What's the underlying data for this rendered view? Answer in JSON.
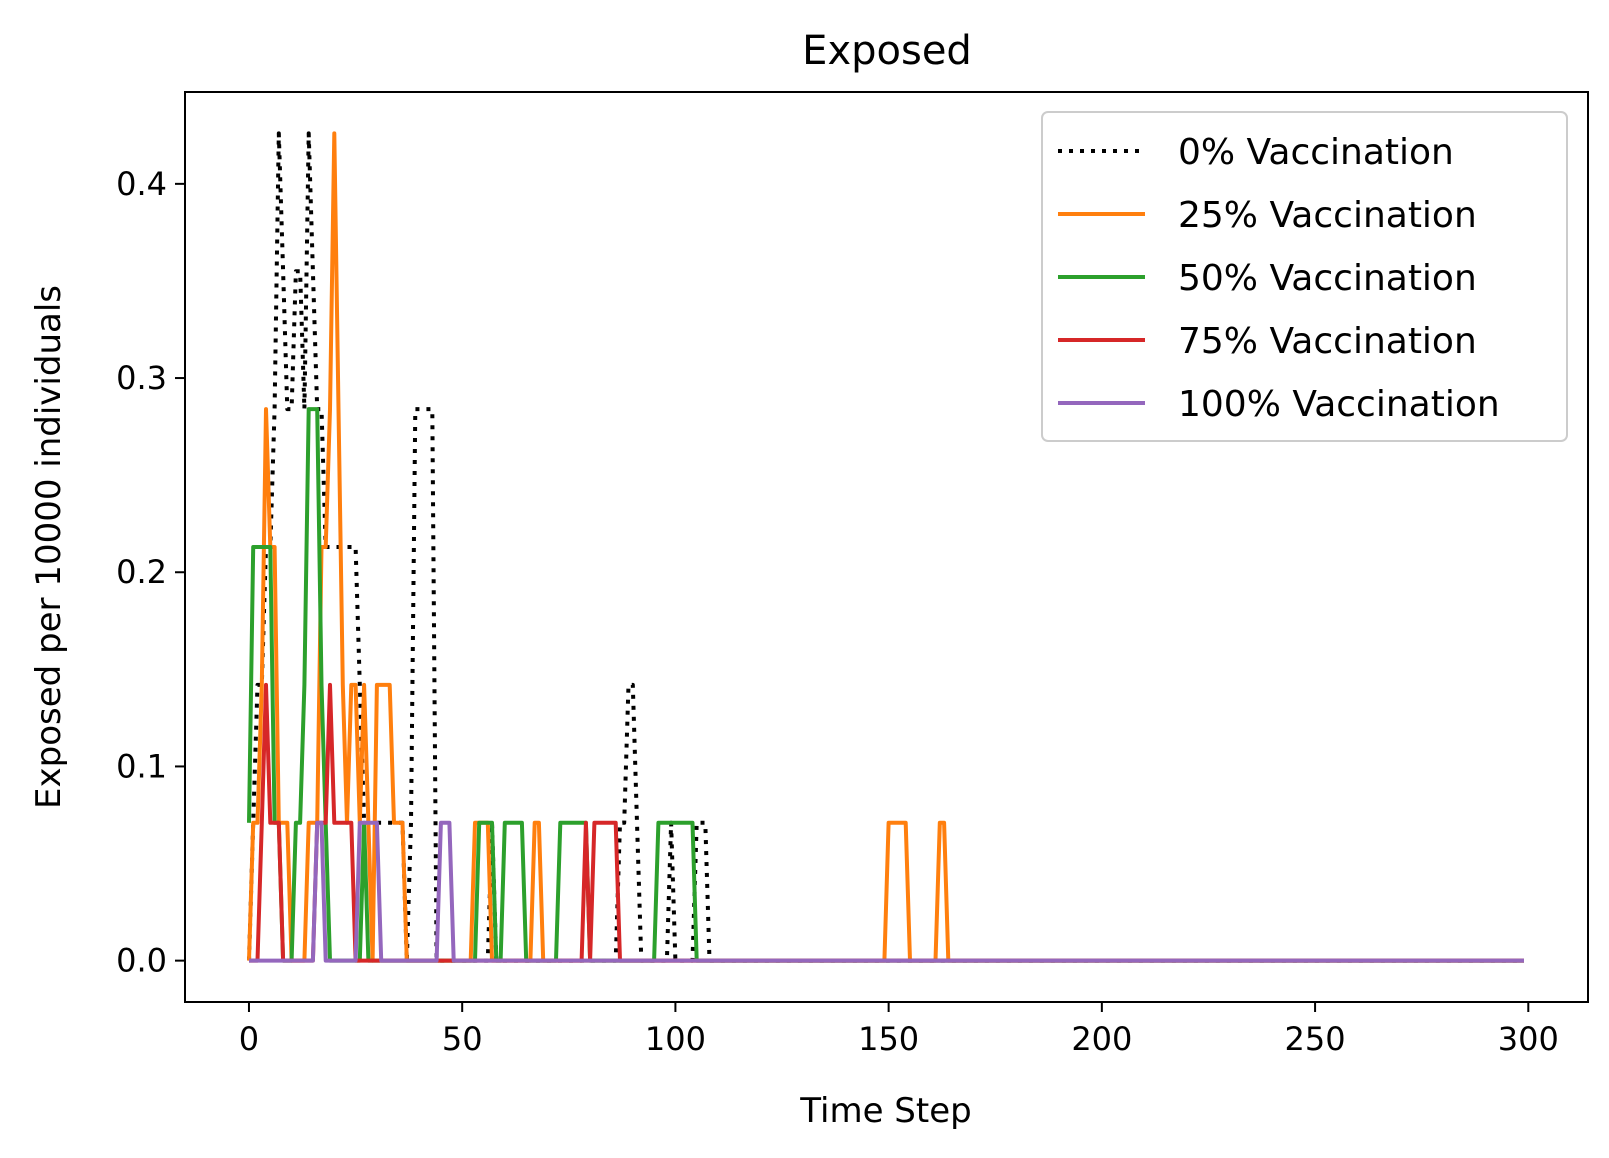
{
  "chart_data": {
    "type": "line",
    "title": "Exposed",
    "xlabel": "Time Step",
    "ylabel": "Exposed per 10000 individuals",
    "xlim": [
      -15,
      314
    ],
    "ylim": [
      -0.0213,
      0.4473
    ],
    "xticks": [
      0,
      50,
      100,
      150,
      200,
      250,
      300
    ],
    "xtick_labels": [
      "0",
      "50",
      "100",
      "150",
      "200",
      "250",
      "300"
    ],
    "yticks": [
      0.0,
      0.1,
      0.2,
      0.3,
      0.4
    ],
    "ytick_labels": [
      "0.0",
      "0.1",
      "0.2",
      "0.3",
      "0.4"
    ],
    "grid": false,
    "legend_position": "top-right",
    "series": [
      {
        "name": "0% Vaccination",
        "color": "#000000",
        "style": "dotted",
        "points": [
          [
            0,
            0
          ],
          [
            1,
            0.071
          ],
          [
            2,
            0.142
          ],
          [
            3,
            0.142
          ],
          [
            4,
            0.213
          ],
          [
            5,
            0.213
          ],
          [
            6,
            0.284
          ],
          [
            7,
            0.426
          ],
          [
            8,
            0.355
          ],
          [
            9,
            0.284
          ],
          [
            10,
            0.284
          ],
          [
            11,
            0.355
          ],
          [
            12,
            0.355
          ],
          [
            13,
            0.284
          ],
          [
            14,
            0.426
          ],
          [
            15,
            0.355
          ],
          [
            16,
            0.284
          ],
          [
            17,
            0.284
          ],
          [
            18,
            0.213
          ],
          [
            19,
            0.213
          ],
          [
            20,
            0.213
          ],
          [
            21,
            0.213
          ],
          [
            22,
            0.213
          ],
          [
            23,
            0.213
          ],
          [
            24,
            0.213
          ],
          [
            25,
            0.213
          ],
          [
            26,
            0.142
          ],
          [
            27,
            0.071
          ],
          [
            28,
            0.071
          ],
          [
            29,
            0.071
          ],
          [
            30,
            0.071
          ],
          [
            31,
            0.071
          ],
          [
            32,
            0.071
          ],
          [
            33,
            0.071
          ],
          [
            34,
            0.071
          ],
          [
            35,
            0.071
          ],
          [
            36,
            0.071
          ],
          [
            37,
            0
          ],
          [
            38,
            0.071
          ],
          [
            39,
            0.284
          ],
          [
            40,
            0.284
          ],
          [
            41,
            0.284
          ],
          [
            42,
            0.284
          ],
          [
            43,
            0.284
          ],
          [
            44,
            0
          ],
          [
            45,
            0
          ],
          [
            46,
            0
          ],
          [
            47,
            0
          ],
          [
            48,
            0
          ],
          [
            49,
            0
          ],
          [
            50,
            0
          ],
          [
            51,
            0
          ],
          [
            52,
            0
          ],
          [
            53,
            0
          ],
          [
            54,
            0
          ],
          [
            55,
            0
          ],
          [
            56,
            0
          ],
          [
            57,
            0.071
          ],
          [
            58,
            0
          ],
          [
            59,
            0
          ],
          [
            60,
            0
          ],
          [
            61,
            0
          ],
          [
            62,
            0
          ],
          [
            63,
            0
          ],
          [
            64,
            0
          ],
          [
            65,
            0
          ],
          [
            66,
            0
          ],
          [
            67,
            0
          ],
          [
            68,
            0
          ],
          [
            69,
            0
          ],
          [
            70,
            0
          ],
          [
            71,
            0
          ],
          [
            72,
            0
          ],
          [
            73,
            0
          ],
          [
            74,
            0
          ],
          [
            75,
            0
          ],
          [
            76,
            0
          ],
          [
            77,
            0
          ],
          [
            78,
            0
          ],
          [
            79,
            0
          ],
          [
            80,
            0
          ],
          [
            81,
            0
          ],
          [
            82,
            0
          ],
          [
            83,
            0
          ],
          [
            84,
            0
          ],
          [
            85,
            0
          ],
          [
            86,
            0
          ],
          [
            87,
            0.071
          ],
          [
            88,
            0.071
          ],
          [
            89,
            0.142
          ],
          [
            90,
            0.142
          ],
          [
            91,
            0.071
          ],
          [
            92,
            0
          ],
          [
            93,
            0
          ],
          [
            94,
            0
          ],
          [
            95,
            0
          ],
          [
            96,
            0
          ],
          [
            97,
            0
          ],
          [
            98,
            0
          ],
          [
            99,
            0.071
          ],
          [
            100,
            0
          ],
          [
            101,
            0
          ],
          [
            102,
            0
          ],
          [
            103,
            0
          ],
          [
            104,
            0
          ],
          [
            105,
            0.071
          ],
          [
            106,
            0.071
          ],
          [
            107,
            0.071
          ],
          [
            108,
            0
          ],
          [
            299,
            0
          ]
        ]
      },
      {
        "name": "25% Vaccination",
        "color": "#ff7f0e",
        "style": "solid",
        "points": [
          [
            0,
            0
          ],
          [
            1,
            0.071
          ],
          [
            2,
            0.071
          ],
          [
            3,
            0.142
          ],
          [
            4,
            0.284
          ],
          [
            5,
            0.213
          ],
          [
            6,
            0.213
          ],
          [
            7,
            0.071
          ],
          [
            8,
            0.071
          ],
          [
            9,
            0.071
          ],
          [
            10,
            0
          ],
          [
            11,
            0
          ],
          [
            12,
            0
          ],
          [
            13,
            0
          ],
          [
            14,
            0.071
          ],
          [
            15,
            0.071
          ],
          [
            16,
            0.071
          ],
          [
            17,
            0.213
          ],
          [
            18,
            0.213
          ],
          [
            19,
            0.284
          ],
          [
            20,
            0.426
          ],
          [
            21,
            0.284
          ],
          [
            22,
            0.142
          ],
          [
            23,
            0.071
          ],
          [
            24,
            0.142
          ],
          [
            25,
            0.142
          ],
          [
            26,
            0.071
          ],
          [
            27,
            0.142
          ],
          [
            28,
            0.071
          ],
          [
            29,
            0
          ],
          [
            30,
            0.142
          ],
          [
            31,
            0.142
          ],
          [
            32,
            0.142
          ],
          [
            33,
            0.142
          ],
          [
            34,
            0.071
          ],
          [
            35,
            0.071
          ],
          [
            36,
            0.071
          ],
          [
            37,
            0
          ],
          [
            38,
            0
          ],
          [
            52,
            0
          ],
          [
            53,
            0.071
          ],
          [
            54,
            0.071
          ],
          [
            55,
            0.071
          ],
          [
            56,
            0.071
          ],
          [
            57,
            0
          ],
          [
            58,
            0
          ],
          [
            66,
            0
          ],
          [
            67,
            0.071
          ],
          [
            68,
            0.071
          ],
          [
            69,
            0
          ],
          [
            149,
            0
          ],
          [
            150,
            0.071
          ],
          [
            151,
            0.071
          ],
          [
            152,
            0.071
          ],
          [
            153,
            0.071
          ],
          [
            154,
            0.071
          ],
          [
            155,
            0
          ],
          [
            161,
            0
          ],
          [
            162,
            0.071
          ],
          [
            163,
            0.071
          ],
          [
            164,
            0
          ],
          [
            299,
            0
          ]
        ]
      },
      {
        "name": "50% Vaccination",
        "color": "#2ca02c",
        "style": "solid",
        "points": [
          [
            0,
            0.071
          ],
          [
            1,
            0.213
          ],
          [
            2,
            0.213
          ],
          [
            3,
            0.213
          ],
          [
            4,
            0.213
          ],
          [
            5,
            0.213
          ],
          [
            6,
            0.071
          ],
          [
            7,
            0.071
          ],
          [
            8,
            0
          ],
          [
            9,
            0
          ],
          [
            10,
            0
          ],
          [
            11,
            0.071
          ],
          [
            12,
            0.071
          ],
          [
            13,
            0.142
          ],
          [
            14,
            0.284
          ],
          [
            15,
            0.284
          ],
          [
            16,
            0.284
          ],
          [
            17,
            0.142
          ],
          [
            18,
            0.071
          ],
          [
            19,
            0
          ],
          [
            20,
            0
          ],
          [
            26,
            0
          ],
          [
            27,
            0.071
          ],
          [
            28,
            0
          ],
          [
            45,
            0
          ],
          [
            46,
            0
          ],
          [
            53,
            0
          ],
          [
            54,
            0.071
          ],
          [
            55,
            0.071
          ],
          [
            56,
            0.071
          ],
          [
            57,
            0.071
          ],
          [
            58,
            0
          ],
          [
            59,
            0
          ],
          [
            60,
            0.071
          ],
          [
            61,
            0.071
          ],
          [
            62,
            0.071
          ],
          [
            63,
            0.071
          ],
          [
            64,
            0.071
          ],
          [
            65,
            0
          ],
          [
            72,
            0
          ],
          [
            73,
            0.071
          ],
          [
            74,
            0.071
          ],
          [
            75,
            0.071
          ],
          [
            76,
            0.071
          ],
          [
            77,
            0.071
          ],
          [
            78,
            0.071
          ],
          [
            79,
            0.071
          ],
          [
            80,
            0
          ],
          [
            95,
            0
          ],
          [
            96,
            0.071
          ],
          [
            97,
            0.071
          ],
          [
            98,
            0.071
          ],
          [
            99,
            0.071
          ],
          [
            100,
            0.071
          ],
          [
            101,
            0.071
          ],
          [
            102,
            0.071
          ],
          [
            103,
            0.071
          ],
          [
            104,
            0.071
          ],
          [
            105,
            0
          ],
          [
            299,
            0
          ]
        ]
      },
      {
        "name": "75% Vaccination",
        "color": "#d62728",
        "style": "solid",
        "points": [
          [
            0,
            0
          ],
          [
            1,
            0
          ],
          [
            2,
            0
          ],
          [
            3,
            0.071
          ],
          [
            4,
            0.142
          ],
          [
            5,
            0.071
          ],
          [
            6,
            0.071
          ],
          [
            7,
            0.071
          ],
          [
            8,
            0
          ],
          [
            9,
            0
          ],
          [
            15,
            0
          ],
          [
            16,
            0.071
          ],
          [
            17,
            0.071
          ],
          [
            18,
            0.071
          ],
          [
            19,
            0.142
          ],
          [
            20,
            0.071
          ],
          [
            21,
            0.071
          ],
          [
            22,
            0.071
          ],
          [
            23,
            0.071
          ],
          [
            24,
            0.071
          ],
          [
            25,
            0
          ],
          [
            26,
            0
          ],
          [
            27,
            0
          ],
          [
            28,
            0
          ],
          [
            29,
            0
          ],
          [
            78,
            0
          ],
          [
            79,
            0.071
          ],
          [
            80,
            0
          ],
          [
            81,
            0.071
          ],
          [
            82,
            0.071
          ],
          [
            83,
            0.071
          ],
          [
            84,
            0.071
          ],
          [
            85,
            0.071
          ],
          [
            86,
            0.071
          ],
          [
            87,
            0
          ],
          [
            299,
            0
          ]
        ]
      },
      {
        "name": "100% Vaccination",
        "color": "#9467bd",
        "style": "solid",
        "points": [
          [
            0,
            0
          ],
          [
            15,
            0
          ],
          [
            16,
            0.071
          ],
          [
            17,
            0.071
          ],
          [
            18,
            0
          ],
          [
            25,
            0
          ],
          [
            26,
            0.071
          ],
          [
            27,
            0.071
          ],
          [
            28,
            0.071
          ],
          [
            29,
            0.071
          ],
          [
            30,
            0.071
          ],
          [
            31,
            0
          ],
          [
            44,
            0
          ],
          [
            45,
            0.071
          ],
          [
            46,
            0.071
          ],
          [
            47,
            0.071
          ],
          [
            48,
            0
          ],
          [
            299,
            0
          ]
        ]
      }
    ]
  }
}
